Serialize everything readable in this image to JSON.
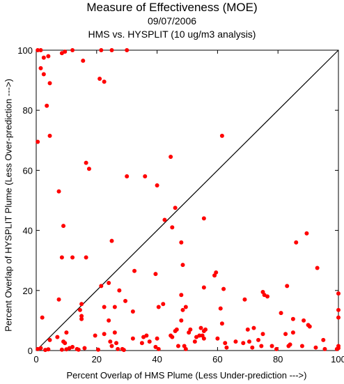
{
  "chart_data": {
    "type": "scatter",
    "title": "Measure of Effectiveness (MOE)",
    "subtitle_date": "09/07/2006",
    "subtitle": "HMS vs. HYSPLIT  (10 ug/m3 analysis)",
    "xlabel": "Percent Overlap of HMS Plume (Less Under-prediction --->)",
    "ylabel": "Percent Overlap of HYSPLIT Plume (Less Over-prediction --->)",
    "xlim": [
      0,
      100
    ],
    "ylim": [
      0,
      100
    ],
    "xticks": [
      0,
      20,
      40,
      60,
      80,
      100
    ],
    "yticks": [
      0,
      20,
      40,
      60,
      80,
      100
    ],
    "diagonal": true,
    "grid": false,
    "point_color": "#ff0000",
    "points": [
      [
        0.5,
        100
      ],
      [
        1.5,
        100
      ],
      [
        8.5,
        99
      ],
      [
        9.5,
        99.5
      ],
      [
        12,
        100
      ],
      [
        21.5,
        100
      ],
      [
        25,
        100
      ],
      [
        30,
        100
      ],
      [
        2.5,
        97.5
      ],
      [
        4,
        98
      ],
      [
        15.5,
        96.5
      ],
      [
        1.5,
        94
      ],
      [
        2.5,
        92
      ],
      [
        21,
        90.5
      ],
      [
        22.5,
        89.5
      ],
      [
        4.5,
        89
      ],
      [
        3.5,
        81.5
      ],
      [
        4.5,
        71.5
      ],
      [
        61.5,
        71.5
      ],
      [
        0.5,
        69.5
      ],
      [
        44.5,
        64.5
      ],
      [
        16.5,
        62.5
      ],
      [
        17.5,
        60.5
      ],
      [
        30,
        58
      ],
      [
        36,
        58
      ],
      [
        40,
        55
      ],
      [
        7.5,
        53
      ],
      [
        46,
        47.5
      ],
      [
        42.5,
        43.5
      ],
      [
        55.5,
        44
      ],
      [
        9,
        41.5
      ],
      [
        45,
        41
      ],
      [
        25,
        36.5
      ],
      [
        48,
        36
      ],
      [
        86,
        36
      ],
      [
        89.5,
        39
      ],
      [
        8.5,
        31
      ],
      [
        12,
        31
      ],
      [
        16.5,
        31
      ],
      [
        48.5,
        28.5
      ],
      [
        32.5,
        26.5
      ],
      [
        39.5,
        25.5
      ],
      [
        59,
        25
      ],
      [
        59.5,
        26
      ],
      [
        93,
        27.5
      ],
      [
        21.5,
        21.5
      ],
      [
        24,
        22.5
      ],
      [
        27.5,
        20
      ],
      [
        55.5,
        21
      ],
      [
        62,
        20.5
      ],
      [
        75,
        19.5
      ],
      [
        75.5,
        18.5
      ],
      [
        76.5,
        18
      ],
      [
        83,
        21.5
      ],
      [
        100,
        19
      ],
      [
        7.5,
        17
      ],
      [
        29.5,
        16.5
      ],
      [
        40.5,
        14.5
      ],
      [
        42,
        15.5
      ],
      [
        48,
        18.5
      ],
      [
        69,
        17
      ],
      [
        15,
        15.5
      ],
      [
        14.5,
        13.5
      ],
      [
        22.5,
        14.5
      ],
      [
        26,
        14.5
      ],
      [
        32,
        13
      ],
      [
        48.5,
        13.5
      ],
      [
        49.5,
        14.5
      ],
      [
        61,
        14
      ],
      [
        81,
        12.5
      ],
      [
        100,
        13.5
      ],
      [
        2,
        11
      ],
      [
        15,
        11.5
      ],
      [
        15,
        10.5
      ],
      [
        24,
        10
      ],
      [
        48,
        10
      ],
      [
        61.5,
        9
      ],
      [
        85,
        10.5
      ],
      [
        88.5,
        10
      ],
      [
        90,
        8.5
      ],
      [
        90.5,
        8
      ],
      [
        100,
        11
      ],
      [
        4.5,
        3.5
      ],
      [
        7,
        4.5
      ],
      [
        9,
        3
      ],
      [
        9.5,
        2.5
      ],
      [
        10,
        6
      ],
      [
        13.5,
        0.5
      ],
      [
        16,
        0.8
      ],
      [
        19.5,
        5
      ],
      [
        22.5,
        5.5
      ],
      [
        26,
        6
      ],
      [
        24.5,
        3
      ],
      [
        25,
        1.5
      ],
      [
        26.5,
        2.5
      ],
      [
        32,
        4
      ],
      [
        35.5,
        4.5
      ],
      [
        36.5,
        5
      ],
      [
        35,
        2.5
      ],
      [
        37.5,
        3
      ],
      [
        39.5,
        1.2
      ],
      [
        40.5,
        0.5
      ],
      [
        40,
        4
      ],
      [
        44.5,
        5
      ],
      [
        45,
        4.5
      ],
      [
        46,
        6.5
      ],
      [
        46.5,
        7
      ],
      [
        47,
        1.5
      ],
      [
        49,
        1.5
      ],
      [
        49.5,
        0.5
      ],
      [
        50.5,
        6
      ],
      [
        51,
        7
      ],
      [
        52.5,
        3
      ],
      [
        53,
        4.5
      ],
      [
        54,
        5
      ],
      [
        54.5,
        7.5
      ],
      [
        55,
        5
      ],
      [
        55.5,
        4
      ],
      [
        55.5,
        6.5
      ],
      [
        56,
        7
      ],
      [
        60,
        4
      ],
      [
        62.5,
        2.5
      ],
      [
        63,
        1
      ],
      [
        66,
        3
      ],
      [
        68.5,
        2.5
      ],
      [
        70,
        7
      ],
      [
        70.5,
        3
      ],
      [
        71.5,
        1
      ],
      [
        72,
        7.5
      ],
      [
        73.5,
        3.5
      ],
      [
        74.5,
        1.5
      ],
      [
        75,
        5.5
      ],
      [
        78,
        1.5
      ],
      [
        79.5,
        0.5
      ],
      [
        82.5,
        5.5
      ],
      [
        83.5,
        1.5
      ],
      [
        84,
        2
      ],
      [
        85,
        6
      ],
      [
        88,
        1.5
      ],
      [
        92.5,
        1
      ],
      [
        95,
        3.5
      ],
      [
        95.5,
        0.5
      ],
      [
        99.5,
        0.5
      ],
      [
        100,
        1.5
      ],
      [
        100,
        0.8
      ],
      [
        0.5,
        0.5
      ],
      [
        1.5,
        0.8
      ],
      [
        3,
        0.2
      ],
      [
        4,
        0.4
      ],
      [
        8.5,
        0.3
      ],
      [
        10,
        0.4
      ],
      [
        11,
        0.8
      ],
      [
        12,
        1.2
      ],
      [
        14,
        0.3
      ],
      [
        20.5,
        0.3
      ],
      [
        27,
        0.5
      ],
      [
        28.5,
        0.5
      ],
      [
        29,
        0.2
      ]
    ]
  }
}
